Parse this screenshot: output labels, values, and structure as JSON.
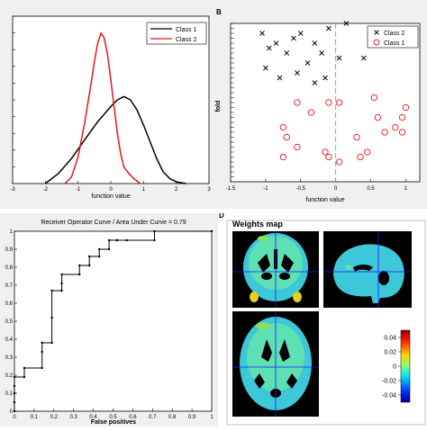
{
  "panels": {
    "a": {
      "label": "",
      "chart_data": {
        "type": "line",
        "xlabel": "function value",
        "ylabel": "",
        "xlim": [
          -3,
          3
        ],
        "ylim": [
          0,
          1
        ],
        "x_ticks": [
          "-3",
          "-2",
          "-1",
          "0",
          "1",
          "2",
          "3"
        ],
        "y_ticks": [
          "",
          "",
          "",
          "",
          "",
          "",
          "",
          "",
          "",
          ""
        ],
        "legend": "top-right",
        "series": [
          {
            "name": "Class 1",
            "color": "#000000",
            "x": [
              -2.0,
              -1.6,
              -1.2,
              -0.8,
              -0.4,
              0.0,
              0.2,
              0.4,
              0.6,
              0.8,
              1.0,
              1.2,
              1.4,
              1.6,
              1.8,
              2.0,
              2.3
            ],
            "y": [
              0.0,
              0.06,
              0.15,
              0.26,
              0.37,
              0.46,
              0.5,
              0.52,
              0.5,
              0.44,
              0.35,
              0.25,
              0.15,
              0.07,
              0.03,
              0.01,
              0.0
            ]
          },
          {
            "name": "Class 2",
            "color": "#e8141c",
            "x": [
              -1.4,
              -1.2,
              -1.0,
              -0.8,
              -0.6,
              -0.5,
              -0.4,
              -0.3,
              -0.2,
              -0.1,
              0.0,
              0.1,
              0.2,
              0.3,
              0.4,
              0.55,
              0.7,
              0.9
            ],
            "y": [
              0.0,
              0.04,
              0.16,
              0.36,
              0.6,
              0.73,
              0.84,
              0.9,
              0.87,
              0.77,
              0.62,
              0.46,
              0.3,
              0.18,
              0.1,
              0.06,
              0.03,
              0.0
            ]
          }
        ]
      }
    },
    "b": {
      "label": "B",
      "chart_data": {
        "type": "scatter",
        "xlabel": "function value",
        "ylabel": "fold",
        "xlim": [
          -1.5,
          1.2
        ],
        "ylim": [
          0,
          32
        ],
        "x_ticks": [
          "-1.5",
          "-1",
          "-0.5",
          "0",
          "0.5",
          "1"
        ],
        "legend": "top-right",
        "series": [
          {
            "name": "Class 2",
            "marker": "x",
            "color": "#000000",
            "points": [
              [
                -1.05,
                30
              ],
              [
                -0.85,
                28
              ],
              [
                -0.7,
                26
              ],
              [
                -0.5,
                30
              ],
              [
                -0.3,
                28
              ],
              [
                -0.1,
                31
              ],
              [
                0.15,
                32
              ],
              [
                -0.95,
                27
              ],
              [
                -0.6,
                29
              ],
              [
                -0.4,
                24
              ],
              [
                -0.2,
                26
              ],
              [
                0.05,
                25
              ],
              [
                0.4,
                25
              ],
              [
                -1.0,
                23
              ],
              [
                -0.8,
                21
              ],
              [
                -0.55,
                22
              ],
              [
                -0.3,
                20
              ],
              [
                -0.15,
                21
              ]
            ]
          },
          {
            "name": "Class 1",
            "marker": "o",
            "color": "#e8141c",
            "points": [
              [
                0.55,
                17
              ],
              [
                1.0,
                15
              ],
              [
                0.95,
                13
              ],
              [
                0.6,
                13
              ],
              [
                0.85,
                11
              ],
              [
                0.3,
                9
              ],
              [
                0.7,
                10
              ],
              [
                0.95,
                10
              ],
              [
                -0.75,
                11
              ],
              [
                -0.7,
                9
              ],
              [
                -0.75,
                5
              ],
              [
                -0.55,
                7
              ],
              [
                -0.15,
                6
              ],
              [
                0.05,
                4
              ],
              [
                -0.1,
                5
              ],
              [
                0.35,
                5
              ],
              [
                0.45,
                6
              ],
              [
                -0.1,
                16
              ],
              [
                -0.35,
                14
              ],
              [
                0.05,
                16
              ],
              [
                -0.55,
                16
              ]
            ]
          }
        ]
      }
    },
    "c": {
      "label": "",
      "chart_data": {
        "type": "line",
        "title": "Receiver Operator Curve / Area Under Curve = 0.79",
        "xlabel": "False positives",
        "ylabel": "",
        "xlim": [
          0,
          1
        ],
        "ylim": [
          0,
          1
        ],
        "x_ticks": [
          "0",
          "0.1",
          "0.2",
          "0.3",
          "0.4",
          "0.5",
          "0.6",
          "0.7",
          "0.8",
          "0.9",
          "1"
        ],
        "y_ticks": [
          "0",
          "0.1",
          "0.2",
          "0.3",
          "0.4",
          "0.5",
          "0.6",
          "0.7",
          "0.8",
          "0.9",
          "1"
        ],
        "series": [
          {
            "name": "",
            "color": "#000000",
            "x": [
              0,
              0,
              0,
              0,
              0,
              0.05,
              0.05,
              0.14,
              0.14,
              0.14,
              0.19,
              0.19,
              0.19,
              0.24,
              0.24,
              0.24,
              0.33,
              0.33,
              0.38,
              0.38,
              0.43,
              0.43,
              0.48,
              0.48,
              0.52,
              0.52,
              0.57,
              0.71,
              0.71,
              1.0
            ],
            "y": [
              0,
              0.05,
              0.1,
              0.14,
              0.19,
              0.19,
              0.24,
              0.24,
              0.33,
              0.38,
              0.38,
              0.52,
              0.67,
              0.67,
              0.71,
              0.76,
              0.76,
              0.81,
              0.81,
              0.86,
              0.86,
              0.9,
              0.9,
              0.95,
              0.95,
              0.95,
              0.95,
              0.95,
              1.0,
              1.0
            ]
          }
        ]
      }
    },
    "d": {
      "label": "D",
      "title": "Weights map",
      "colorbar": {
        "ticks": [
          "0.04",
          "0.02",
          "0",
          "-0.02",
          "-0.04"
        ],
        "colors": [
          "#8b0000",
          "#ff2000",
          "#ffd800",
          "#7fff7f",
          "#00d8ff",
          "#0030ff",
          "#00008b"
        ]
      }
    }
  }
}
